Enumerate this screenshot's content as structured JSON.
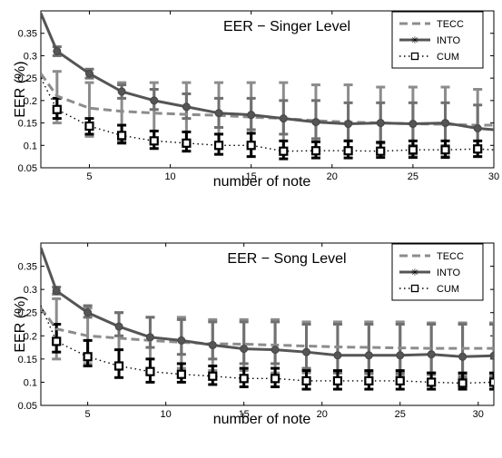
{
  "chart_data": [
    {
      "type": "line",
      "title": "EER − Singer Level",
      "xlabel": "number of note",
      "ylabel": "EER (%)",
      "xlim": [
        2,
        30
      ],
      "ylim": [
        0.05,
        0.4
      ],
      "xticks": [
        5,
        10,
        15,
        20,
        25,
        30
      ],
      "yticks": [
        0.05,
        0.1,
        0.15,
        0.2,
        0.25,
        0.3,
        0.35
      ],
      "xtick_labels": [
        "5",
        "10",
        "15",
        "20",
        "25",
        "30"
      ],
      "ytick_labels": [
        "0.05",
        "0.1",
        "0.15",
        "0.2",
        "0.25",
        "0.3",
        "0.35"
      ],
      "grid": false,
      "legend_position": "top-right",
      "series": [
        {
          "name": "TECC",
          "style": "dashed",
          "color": "#8c8c8c",
          "x": [
            2,
            3,
            5,
            7,
            9,
            11,
            13,
            15,
            17,
            19,
            21,
            23,
            25,
            27,
            29,
            30
          ],
          "y": [
            0.26,
            0.21,
            0.183,
            0.176,
            0.172,
            0.169,
            0.167,
            0.163,
            0.16,
            0.155,
            0.152,
            0.15,
            0.148,
            0.147,
            0.145,
            0.145
          ],
          "error_x": [
            3,
            5,
            7,
            9,
            11,
            13,
            15,
            17,
            19,
            21,
            23,
            25,
            27,
            29
          ],
          "error_low": [
            0.15,
            0.12,
            0.11,
            0.11,
            0.1,
            0.1,
            0.1,
            0.09,
            0.09,
            0.085,
            0.085,
            0.08,
            0.075,
            0.075
          ],
          "error_high": [
            0.265,
            0.24,
            0.24,
            0.24,
            0.24,
            0.24,
            0.24,
            0.24,
            0.235,
            0.235,
            0.23,
            0.23,
            0.23,
            0.225
          ]
        },
        {
          "name": "INTO",
          "style": "solid-star",
          "color": "#555555",
          "x": [
            2,
            3,
            5,
            7,
            9,
            11,
            13,
            15,
            17,
            19,
            21,
            23,
            25,
            27,
            29,
            30
          ],
          "y": [
            0.395,
            0.31,
            0.26,
            0.22,
            0.2,
            0.186,
            0.172,
            0.168,
            0.16,
            0.152,
            0.148,
            0.15,
            0.148,
            0.15,
            0.138,
            0.135
          ],
          "error_x": [
            3,
            5,
            7,
            9,
            11,
            13,
            15,
            17,
            19,
            21,
            23,
            25,
            27,
            29
          ],
          "error_low": [
            0.3,
            0.25,
            0.205,
            0.18,
            0.16,
            0.14,
            0.135,
            0.125,
            0.115,
            0.11,
            0.105,
            0.1,
            0.1,
            0.09
          ],
          "error_high": [
            0.32,
            0.27,
            0.235,
            0.225,
            0.215,
            0.205,
            0.205,
            0.2,
            0.2,
            0.195,
            0.195,
            0.195,
            0.195,
            0.19
          ]
        },
        {
          "name": "CUM",
          "style": "dotted-square",
          "color": "#000000",
          "x": [
            2,
            3,
            5,
            7,
            9,
            11,
            13,
            15,
            17,
            19,
            21,
            23,
            25,
            27,
            29,
            30
          ],
          "y": [
            0.25,
            0.18,
            0.143,
            0.122,
            0.11,
            0.105,
            0.1,
            0.1,
            0.087,
            0.088,
            0.088,
            0.087,
            0.09,
            0.09,
            0.092,
            0.09
          ],
          "error_x": [
            3,
            5,
            7,
            9,
            11,
            13,
            15,
            17,
            19,
            21,
            23,
            25,
            27,
            29
          ],
          "error_low": [
            0.16,
            0.125,
            0.105,
            0.093,
            0.087,
            0.08,
            0.075,
            0.07,
            0.072,
            0.072,
            0.073,
            0.073,
            0.073,
            0.075
          ],
          "error_high": [
            0.205,
            0.16,
            0.145,
            0.132,
            0.13,
            0.125,
            0.127,
            0.11,
            0.108,
            0.11,
            0.107,
            0.11,
            0.11,
            0.11
          ]
        }
      ]
    },
    {
      "type": "line",
      "title": "EER − Song Level",
      "xlabel": "number of note",
      "ylabel": "EER (%)",
      "xlim": [
        2,
        31
      ],
      "ylim": [
        0.05,
        0.4
      ],
      "xticks": [
        5,
        10,
        15,
        20,
        25,
        30
      ],
      "yticks": [
        0.05,
        0.1,
        0.15,
        0.2,
        0.25,
        0.3,
        0.35
      ],
      "xtick_labels": [
        "5",
        "10",
        "15",
        "20",
        "25",
        "30"
      ],
      "ytick_labels": [
        "0.05",
        "0.1",
        "0.15",
        "0.2",
        "0.25",
        "0.3",
        "0.35"
      ],
      "grid": false,
      "legend_position": "top-right",
      "series": [
        {
          "name": "TECC",
          "style": "dashed",
          "color": "#8c8c8c",
          "x": [
            2,
            3,
            5,
            7,
            9,
            11,
            13,
            15,
            17,
            19,
            21,
            23,
            25,
            27,
            29,
            31
          ],
          "y": [
            0.26,
            0.215,
            0.2,
            0.195,
            0.19,
            0.186,
            0.183,
            0.182,
            0.18,
            0.178,
            0.176,
            0.175,
            0.174,
            0.173,
            0.173,
            0.173
          ],
          "error_x": [
            3,
            5,
            7,
            9,
            11,
            13,
            15,
            17,
            19,
            21,
            23,
            25,
            27,
            29,
            31
          ],
          "error_low": [
            0.15,
            0.14,
            0.135,
            0.13,
            0.13,
            0.125,
            0.125,
            0.12,
            0.12,
            0.12,
            0.118,
            0.116,
            0.116,
            0.115,
            0.115
          ],
          "error_high": [
            0.28,
            0.26,
            0.25,
            0.24,
            0.24,
            0.235,
            0.235,
            0.235,
            0.23,
            0.23,
            0.23,
            0.23,
            0.228,
            0.228,
            0.228
          ]
        },
        {
          "name": "INTO",
          "style": "solid-star",
          "color": "#555555",
          "x": [
            2,
            3,
            5,
            7,
            9,
            11,
            13,
            15,
            17,
            19,
            21,
            23,
            25,
            27,
            29,
            31
          ],
          "y": [
            0.39,
            0.297,
            0.25,
            0.22,
            0.197,
            0.19,
            0.18,
            0.172,
            0.17,
            0.165,
            0.158,
            0.158,
            0.158,
            0.16,
            0.155,
            0.157
          ],
          "error_x": [
            3,
            5,
            7,
            9,
            11,
            13,
            15,
            17,
            19,
            21,
            23,
            25,
            27,
            29,
            31
          ],
          "error_low": [
            0.29,
            0.24,
            0.2,
            0.175,
            0.16,
            0.15,
            0.14,
            0.14,
            0.13,
            0.12,
            0.12,
            0.12,
            0.12,
            0.11,
            0.11
          ],
          "error_high": [
            0.305,
            0.265,
            0.25,
            0.24,
            0.235,
            0.23,
            0.23,
            0.23,
            0.225,
            0.225,
            0.225,
            0.225,
            0.225,
            0.225,
            0.225
          ]
        },
        {
          "name": "CUM",
          "style": "dotted-square",
          "color": "#000000",
          "x": [
            2,
            3,
            5,
            7,
            9,
            11,
            13,
            15,
            17,
            19,
            21,
            23,
            25,
            27,
            29,
            31
          ],
          "y": [
            0.265,
            0.188,
            0.155,
            0.135,
            0.123,
            0.117,
            0.113,
            0.108,
            0.108,
            0.103,
            0.103,
            0.103,
            0.103,
            0.1,
            0.098,
            0.1
          ],
          "error_x": [
            3,
            5,
            7,
            9,
            11,
            13,
            15,
            17,
            19,
            21,
            23,
            25,
            27,
            29,
            31
          ],
          "error_low": [
            0.165,
            0.135,
            0.11,
            0.1,
            0.1,
            0.095,
            0.09,
            0.09,
            0.085,
            0.085,
            0.085,
            0.085,
            0.085,
            0.085,
            0.085
          ],
          "error_high": [
            0.225,
            0.19,
            0.17,
            0.15,
            0.14,
            0.135,
            0.13,
            0.13,
            0.125,
            0.125,
            0.125,
            0.125,
            0.12,
            0.12,
            0.12
          ]
        }
      ]
    }
  ]
}
